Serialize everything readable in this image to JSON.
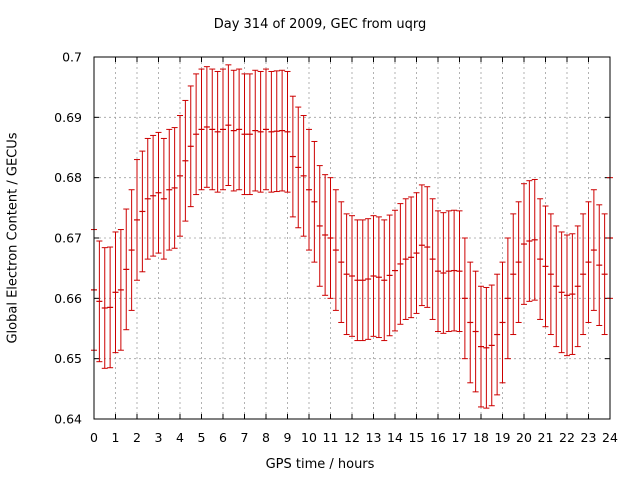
{
  "chart_data": {
    "type": "errorbar",
    "title": "Day 314 of 2009, GEC from uqrg",
    "xlabel": "GPS time / hours",
    "ylabel": "Global Electron Content / GECUs",
    "xlim": [
      0,
      24
    ],
    "ylim": [
      0.64,
      0.7
    ],
    "xticks": [
      0,
      1,
      2,
      3,
      4,
      5,
      6,
      7,
      8,
      9,
      10,
      11,
      12,
      13,
      14,
      15,
      16,
      17,
      18,
      19,
      20,
      21,
      22,
      23,
      24
    ],
    "yticks": [
      "0.64",
      "0.65",
      "0.66",
      "0.67",
      "0.68",
      "0.69",
      "0.7"
    ],
    "grid": true,
    "series": [
      {
        "color": "#cc0000",
        "error": 0.01,
        "x": [
          0.0,
          0.25,
          0.5,
          0.75,
          1.0,
          1.25,
          1.5,
          1.75,
          2.0,
          2.25,
          2.5,
          2.75,
          3.0,
          3.25,
          3.5,
          3.75,
          4.0,
          4.25,
          4.5,
          4.75,
          5.0,
          5.25,
          5.5,
          5.75,
          6.0,
          6.25,
          6.5,
          6.75,
          7.0,
          7.25,
          7.5,
          7.75,
          8.0,
          8.25,
          8.5,
          8.75,
          9.0,
          9.25,
          9.5,
          9.75,
          10.0,
          10.25,
          10.5,
          10.75,
          11.0,
          11.25,
          11.5,
          11.75,
          12.0,
          12.25,
          12.5,
          12.75,
          13.0,
          13.25,
          13.5,
          13.75,
          14.0,
          14.25,
          14.5,
          14.75,
          15.0,
          15.25,
          15.5,
          15.75,
          16.0,
          16.25,
          16.5,
          16.75,
          17.0,
          17.25,
          17.5,
          17.75,
          18.0,
          18.25,
          18.5,
          18.75,
          19.0,
          19.25,
          19.5,
          19.75,
          20.0,
          20.25,
          20.5,
          20.75,
          21.0,
          21.25,
          21.5,
          21.75,
          22.0,
          22.25,
          22.5,
          22.75,
          23.0,
          23.25,
          23.5,
          23.75,
          24.0
        ],
        "y": [
          0.6614,
          0.6595,
          0.6584,
          0.6585,
          0.661,
          0.6614,
          0.6648,
          0.668,
          0.673,
          0.6744,
          0.6765,
          0.677,
          0.6775,
          0.6765,
          0.678,
          0.6783,
          0.6803,
          0.6828,
          0.6852,
          0.6872,
          0.688,
          0.6884,
          0.688,
          0.6876,
          0.688,
          0.6887,
          0.6878,
          0.688,
          0.6872,
          0.6872,
          0.6878,
          0.6876,
          0.688,
          0.6876,
          0.6877,
          0.6878,
          0.6876,
          0.6835,
          0.6817,
          0.6803,
          0.678,
          0.676,
          0.672,
          0.6705,
          0.67,
          0.668,
          0.666,
          0.664,
          0.6637,
          0.663,
          0.663,
          0.6632,
          0.6637,
          0.6635,
          0.663,
          0.6638,
          0.6646,
          0.6657,
          0.6665,
          0.6668,
          0.6675,
          0.6688,
          0.6685,
          0.6665,
          0.6645,
          0.6642,
          0.6645,
          0.6646,
          0.6645,
          0.66,
          0.656,
          0.6545,
          0.652,
          0.6518,
          0.6522,
          0.654,
          0.656,
          0.66,
          0.664,
          0.666,
          0.669,
          0.6695,
          0.6697,
          0.6665,
          0.6653,
          0.664,
          0.662,
          0.661,
          0.6605,
          0.6607,
          0.662,
          0.664,
          0.666,
          0.668,
          0.6655,
          0.664,
          0.67
        ]
      }
    ]
  }
}
